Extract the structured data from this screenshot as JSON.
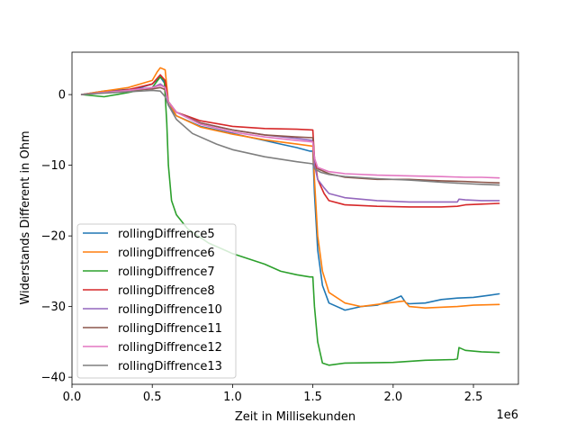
{
  "chart_data": {
    "type": "line",
    "title": "",
    "xlabel": "Zeit in Millisekunden",
    "ylabel": "Widerstands Different in Ohm",
    "x_offset_label": "1e6",
    "xlim": [
      0,
      2.78
    ],
    "ylim": [
      -41,
      6
    ],
    "x_ticks": [
      {
        "value": 0.0,
        "label": "0.0"
      },
      {
        "value": 0.5,
        "label": "0.5"
      },
      {
        "value": 1.0,
        "label": "1.0"
      },
      {
        "value": 1.5,
        "label": "1.5"
      },
      {
        "value": 2.0,
        "label": "2.0"
      },
      {
        "value": 2.5,
        "label": "2.5"
      }
    ],
    "y_ticks": [
      {
        "value": 0,
        "label": "0"
      },
      {
        "value": -10,
        "label": "−10"
      },
      {
        "value": -20,
        "label": "−20"
      },
      {
        "value": -30,
        "label": "−30"
      },
      {
        "value": -40,
        "label": "−40"
      }
    ],
    "grid": false,
    "legend_position": "lower-left",
    "series": [
      {
        "name": "rollingDiffrence5",
        "color": "#1f77b4",
        "points": [
          [
            0.06,
            0
          ],
          [
            0.2,
            0.5
          ],
          [
            0.4,
            0.8
          ],
          [
            0.5,
            1.5
          ],
          [
            0.55,
            2.5
          ],
          [
            0.58,
            1.5
          ],
          [
            0.6,
            -1.5
          ],
          [
            0.65,
            -3
          ],
          [
            0.8,
            -4.5
          ],
          [
            1.0,
            -5.5
          ],
          [
            1.2,
            -6.5
          ],
          [
            1.3,
            -7
          ],
          [
            1.4,
            -7.5
          ],
          [
            1.48,
            -8
          ],
          [
            1.5,
            -8
          ],
          [
            1.51,
            -14
          ],
          [
            1.53,
            -22
          ],
          [
            1.56,
            -27
          ],
          [
            1.6,
            -29.5
          ],
          [
            1.7,
            -30.5
          ],
          [
            1.8,
            -30
          ],
          [
            1.9,
            -29.8
          ],
          [
            2.0,
            -29
          ],
          [
            2.05,
            -28.5
          ],
          [
            2.08,
            -29.5
          ],
          [
            2.1,
            -29.6
          ],
          [
            2.2,
            -29.5
          ],
          [
            2.3,
            -29
          ],
          [
            2.4,
            -28.8
          ],
          [
            2.5,
            -28.7
          ],
          [
            2.6,
            -28.4
          ],
          [
            2.66,
            -28.2
          ]
        ]
      },
      {
        "name": "rollingDiffrence6",
        "color": "#ff7f0e",
        "points": [
          [
            0.06,
            0
          ],
          [
            0.2,
            0.5
          ],
          [
            0.35,
            1
          ],
          [
            0.5,
            2
          ],
          [
            0.53,
            3.2
          ],
          [
            0.55,
            3.8
          ],
          [
            0.58,
            3.5
          ],
          [
            0.6,
            -1
          ],
          [
            0.65,
            -3
          ],
          [
            0.8,
            -4.6
          ],
          [
            1.0,
            -5.6
          ],
          [
            1.2,
            -6.4
          ],
          [
            1.4,
            -7
          ],
          [
            1.5,
            -7.3
          ],
          [
            1.51,
            -12
          ],
          [
            1.53,
            -20
          ],
          [
            1.56,
            -25
          ],
          [
            1.6,
            -28
          ],
          [
            1.7,
            -29.5
          ],
          [
            1.8,
            -30
          ],
          [
            2.0,
            -29.4
          ],
          [
            2.07,
            -29.2
          ],
          [
            2.1,
            -30
          ],
          [
            2.2,
            -30.2
          ],
          [
            2.4,
            -30
          ],
          [
            2.5,
            -29.8
          ],
          [
            2.66,
            -29.7
          ]
        ]
      },
      {
        "name": "rollingDiffrence7",
        "color": "#2ca02c",
        "points": [
          [
            0.06,
            0
          ],
          [
            0.2,
            -0.3
          ],
          [
            0.35,
            0.3
          ],
          [
            0.5,
            1
          ],
          [
            0.55,
            2.5
          ],
          [
            0.575,
            2
          ],
          [
            0.59,
            -4
          ],
          [
            0.6,
            -10
          ],
          [
            0.62,
            -15
          ],
          [
            0.65,
            -17
          ],
          [
            0.72,
            -19
          ],
          [
            0.85,
            -21
          ],
          [
            1.0,
            -22.5
          ],
          [
            1.2,
            -24
          ],
          [
            1.3,
            -25
          ],
          [
            1.4,
            -25.5
          ],
          [
            1.48,
            -25.8
          ],
          [
            1.5,
            -25.8
          ],
          [
            1.51,
            -30
          ],
          [
            1.53,
            -35
          ],
          [
            1.56,
            -38
          ],
          [
            1.6,
            -38.3
          ],
          [
            1.7,
            -38
          ],
          [
            2.0,
            -37.9
          ],
          [
            2.2,
            -37.6
          ],
          [
            2.38,
            -37.5
          ],
          [
            2.4,
            -37.4
          ],
          [
            2.41,
            -35.8
          ],
          [
            2.45,
            -36.2
          ],
          [
            2.55,
            -36.4
          ],
          [
            2.66,
            -36.5
          ]
        ]
      },
      {
        "name": "rollingDiffrence8",
        "color": "#d62728",
        "points": [
          [
            0.06,
            0
          ],
          [
            0.2,
            0.3
          ],
          [
            0.35,
            0.7
          ],
          [
            0.5,
            1.5
          ],
          [
            0.55,
            2.8
          ],
          [
            0.58,
            2
          ],
          [
            0.6,
            -1
          ],
          [
            0.65,
            -2.5
          ],
          [
            0.8,
            -3.7
          ],
          [
            1.0,
            -4.5
          ],
          [
            1.2,
            -4.8
          ],
          [
            1.4,
            -4.9
          ],
          [
            1.5,
            -5
          ],
          [
            1.51,
            -9
          ],
          [
            1.53,
            -12
          ],
          [
            1.57,
            -14
          ],
          [
            1.6,
            -15
          ],
          [
            1.7,
            -15.6
          ],
          [
            1.9,
            -15.8
          ],
          [
            2.1,
            -15.9
          ],
          [
            2.3,
            -15.9
          ],
          [
            2.4,
            -15.8
          ],
          [
            2.45,
            -15.6
          ],
          [
            2.55,
            -15.5
          ],
          [
            2.66,
            -15.4
          ]
        ]
      },
      {
        "name": "rollingDiffrence10",
        "color": "#9467bd",
        "points": [
          [
            0.06,
            0
          ],
          [
            0.2,
            0.3
          ],
          [
            0.35,
            0.6
          ],
          [
            0.5,
            1
          ],
          [
            0.55,
            1.5
          ],
          [
            0.58,
            1
          ],
          [
            0.6,
            -1
          ],
          [
            0.65,
            -2.5
          ],
          [
            0.8,
            -4
          ],
          [
            1.0,
            -5
          ],
          [
            1.2,
            -5.7
          ],
          [
            1.4,
            -6.2
          ],
          [
            1.5,
            -6.5
          ],
          [
            1.51,
            -10
          ],
          [
            1.53,
            -12
          ],
          [
            1.57,
            -13.2
          ],
          [
            1.6,
            -14
          ],
          [
            1.7,
            -14.6
          ],
          [
            1.9,
            -15
          ],
          [
            2.1,
            -15.2
          ],
          [
            2.3,
            -15.2
          ],
          [
            2.4,
            -15.2
          ],
          [
            2.41,
            -14.8
          ],
          [
            2.45,
            -14.9
          ],
          [
            2.55,
            -15
          ],
          [
            2.66,
            -15
          ]
        ]
      },
      {
        "name": "rollingDiffrence11",
        "color": "#8c564b",
        "points": [
          [
            0.06,
            0
          ],
          [
            0.2,
            0.3
          ],
          [
            0.35,
            0.6
          ],
          [
            0.5,
            0.8
          ],
          [
            0.55,
            1
          ],
          [
            0.58,
            0.7
          ],
          [
            0.6,
            -1
          ],
          [
            0.65,
            -2.5
          ],
          [
            0.8,
            -4
          ],
          [
            1.0,
            -5
          ],
          [
            1.2,
            -5.7
          ],
          [
            1.4,
            -6
          ],
          [
            1.5,
            -6.1
          ],
          [
            1.51,
            -9
          ],
          [
            1.53,
            -10.5
          ],
          [
            1.6,
            -11.2
          ],
          [
            1.7,
            -11.7
          ],
          [
            1.9,
            -12
          ],
          [
            2.1,
            -12
          ],
          [
            2.3,
            -12.2
          ],
          [
            2.45,
            -12.3
          ],
          [
            2.55,
            -12.4
          ],
          [
            2.66,
            -12.5
          ]
        ]
      },
      {
        "name": "rollingDiffrence12",
        "color": "#e377c2",
        "points": [
          [
            0.06,
            0
          ],
          [
            0.2,
            0.3
          ],
          [
            0.35,
            0.6
          ],
          [
            0.5,
            1
          ],
          [
            0.55,
            1.3
          ],
          [
            0.58,
            1
          ],
          [
            0.6,
            -1
          ],
          [
            0.65,
            -2.5
          ],
          [
            0.8,
            -4.2
          ],
          [
            1.0,
            -5.3
          ],
          [
            1.2,
            -6
          ],
          [
            1.4,
            -6.5
          ],
          [
            1.5,
            -6.7
          ],
          [
            1.51,
            -9
          ],
          [
            1.53,
            -10.3
          ],
          [
            1.6,
            -10.9
          ],
          [
            1.7,
            -11.2
          ],
          [
            1.9,
            -11.4
          ],
          [
            2.1,
            -11.5
          ],
          [
            2.3,
            -11.6
          ],
          [
            2.45,
            -11.7
          ],
          [
            2.55,
            -11.7
          ],
          [
            2.66,
            -11.8
          ]
        ]
      },
      {
        "name": "rollingDiffrence13",
        "color": "#7f7f7f",
        "points": [
          [
            0.06,
            0
          ],
          [
            0.2,
            0.2
          ],
          [
            0.35,
            0.4
          ],
          [
            0.5,
            0.6
          ],
          [
            0.55,
            0.5
          ],
          [
            0.58,
            -0.3
          ],
          [
            0.6,
            -1.5
          ],
          [
            0.65,
            -3.5
          ],
          [
            0.75,
            -5.5
          ],
          [
            0.9,
            -7
          ],
          [
            1.0,
            -7.8
          ],
          [
            1.2,
            -8.8
          ],
          [
            1.4,
            -9.5
          ],
          [
            1.5,
            -9.8
          ],
          [
            1.51,
            -10.5
          ],
          [
            1.55,
            -11
          ],
          [
            1.6,
            -11.3
          ],
          [
            1.7,
            -11.6
          ],
          [
            1.9,
            -11.9
          ],
          [
            2.1,
            -12.1
          ],
          [
            2.3,
            -12.4
          ],
          [
            2.45,
            -12.6
          ],
          [
            2.55,
            -12.7
          ],
          [
            2.66,
            -12.8
          ]
        ]
      }
    ]
  }
}
